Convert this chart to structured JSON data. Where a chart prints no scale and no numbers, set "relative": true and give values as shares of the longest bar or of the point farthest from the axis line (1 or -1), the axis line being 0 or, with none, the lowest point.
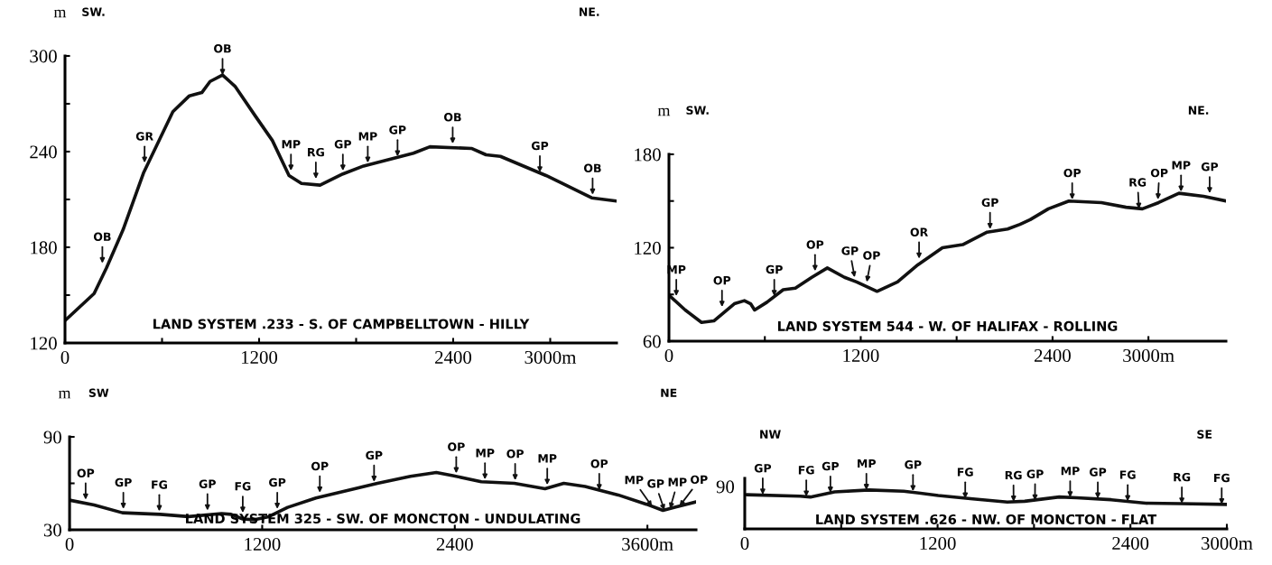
{
  "chart_data": [
    {
      "type": "line",
      "title": "LAND SYSTEM .233 - S. OF CAMPBELLTOWN - HILLY",
      "ylabel": "m",
      "x": [
        0,
        180,
        256,
        359,
        487,
        667,
        769,
        846,
        897,
        974,
        1051,
        1179,
        1282,
        1385,
        1462,
        1577,
        1718,
        1846,
        2154,
        2256,
        2513,
        2603,
        2692,
        2974,
        3077,
        3256,
        3410
      ],
      "series": [
        {
          "color": "#111111",
          "values": [
            134,
            151,
            167,
            191,
            227,
            265,
            275,
            277,
            284,
            288,
            281,
            262,
            247,
            225,
            220,
            219,
            226,
            231,
            239,
            243,
            242,
            238,
            237,
            225,
            220,
            211,
            209
          ]
        }
      ],
      "xlim": [
        0,
        3410
      ],
      "xticks": [
        0,
        {
          "value": 600,
          "label": null
        },
        1200,
        {
          "value": 1800,
          "label": null
        },
        2400,
        {
          "value": 3000,
          "label": "3000m"
        }
      ],
      "ylim": [
        120,
        300
      ],
      "yticks": [
        120,
        {
          "value": 150,
          "label": null
        },
        180,
        {
          "value": 210,
          "label": null
        },
        240,
        {
          "value": 270,
          "label": null
        },
        300
      ],
      "annotations": [
        "SW.",
        "NE.",
        {
          "text": "OB",
          "x": 231,
          "y": 170
        },
        {
          "text": "GR",
          "x": 492,
          "y": 233
        },
        {
          "text": "OB",
          "x": 974,
          "y": 288
        },
        {
          "text": "MP",
          "x": 1397,
          "y": 228
        },
        {
          "text": "RG",
          "x": 1551,
          "y": 223
        },
        {
          "text": "GP",
          "x": 1718,
          "y": 228
        },
        {
          "text": "MP",
          "x": 1872,
          "y": 233
        },
        {
          "text": "GP",
          "x": 2056,
          "y": 237
        },
        {
          "text": "OB",
          "x": 2397,
          "y": 245
        },
        {
          "text": "GP",
          "x": 2936,
          "y": 227
        },
        {
          "text": "OB",
          "x": 3262,
          "y": 213
        }
      ]
    },
    {
      "type": "line",
      "title": "LAND SYSTEM 544 - W. OF HALIFAX - ROLLING",
      "ylabel": "m",
      "x": [
        5,
        102,
        204,
        281,
        409,
        472,
        511,
        536,
        613,
        715,
        791,
        894,
        991,
        1098,
        1174,
        1302,
        1430,
        1557,
        1711,
        1838,
        1991,
        2119,
        2196,
        2260,
        2374,
        2502,
        2706,
        2860,
        2962,
        3064,
        3191,
        3345,
        3485
      ],
      "series": [
        {
          "color": "#111111",
          "values": [
            89,
            80,
            72,
            73,
            84,
            86,
            84,
            80,
            85,
            93,
            94,
            101,
            107,
            101,
            98,
            92,
            98,
            109,
            120,
            122,
            130,
            132,
            135,
            138,
            145,
            150,
            149,
            146,
            145,
            149,
            155,
            153,
            150
          ]
        }
      ],
      "xlim": [
        0,
        3485
      ],
      "xticks": [
        0,
        {
          "value": 600,
          "label": null
        },
        1200,
        {
          "value": 1800,
          "label": null
        },
        2400,
        {
          "value": 3000,
          "label": "3000m"
        }
      ],
      "ylim": [
        60,
        180
      ],
      "yticks": [
        60,
        {
          "value": 90,
          "label": null
        },
        120,
        {
          "value": 150,
          "label": null
        },
        180
      ],
      "annotations": [
        "SW.",
        "NE.",
        {
          "text": "MP",
          "x": 46,
          "y": 89
        },
        {
          "text": "OP",
          "x": 332,
          "y": 82
        },
        {
          "text": "GP",
          "x": 659,
          "y": 89
        },
        {
          "text": "OP",
          "x": 914,
          "y": 105
        },
        {
          "text": "GP",
          "x": 1162,
          "y": 101
        },
        {
          "text": "OP",
          "x": 1238,
          "y": 98
        },
        {
          "text": "OR",
          "x": 1565,
          "y": 113
        },
        {
          "text": "GP",
          "x": 2009,
          "y": 132
        },
        {
          "text": "OP",
          "x": 2523,
          "y": 151
        },
        {
          "text": "RG",
          "x": 2941,
          "y": 145
        },
        {
          "text": "OP",
          "x": 3059,
          "y": 151
        },
        {
          "text": "MP",
          "x": 3204,
          "y": 156
        },
        {
          "text": "GP",
          "x": 3383,
          "y": 155
        }
      ]
    },
    {
      "type": "line",
      "title": "LAND SYSTEM 325 - SW. OF MONCTON - UNDULATING",
      "ylabel": "m",
      "x": [
        6,
        153,
        329,
        565,
        741,
        947,
        1006,
        1079,
        1153,
        1241,
        1359,
        1535,
        1918,
        2124,
        2285,
        2388,
        2565,
        2771,
        2962,
        3079,
        3212,
        3418,
        3594,
        3697,
        3771,
        3903
      ],
      "series": [
        {
          "color": "#111111",
          "values": [
            49,
            46,
            41,
            40,
            38.5,
            40.5,
            40,
            37,
            36.5,
            38.5,
            44.5,
            50.5,
            60,
            64.5,
            67,
            65,
            61,
            60,
            56.5,
            60,
            58,
            52.5,
            46.5,
            42.5,
            44.5,
            48
          ]
        }
      ],
      "xlim": [
        0,
        3903
      ],
      "xticks": [
        0,
        1200,
        2400,
        {
          "value": 3600,
          "label": "3600m"
        }
      ],
      "ylim": [
        30,
        90
      ],
      "yticks": [
        30,
        {
          "value": 60,
          "label": null
        },
        90
      ],
      "annotations": [
        "SW",
        "NE",
        {
          "text": "OP",
          "x": 100,
          "y": 49.5
        },
        {
          "text": "GP",
          "x": 335,
          "y": 43.5
        },
        {
          "text": "FG",
          "x": 559,
          "y": 42
        },
        {
          "text": "GP",
          "x": 859,
          "y": 42.5
        },
        {
          "text": "FG",
          "x": 1079,
          "y": 41
        },
        {
          "text": "GP",
          "x": 1294,
          "y": 43.5
        },
        {
          "text": "OP",
          "x": 1559,
          "y": 54
        },
        {
          "text": "GP",
          "x": 1897,
          "y": 61
        },
        {
          "text": "OP",
          "x": 2409,
          "y": 66.5
        },
        {
          "text": "MP",
          "x": 2588,
          "y": 62.5
        },
        {
          "text": "OP",
          "x": 2776,
          "y": 62
        },
        {
          "text": "MP",
          "x": 2976,
          "y": 59
        },
        {
          "text": "OP",
          "x": 3300,
          "y": 55.6
        },
        {
          "text": "MP",
          "x": 3629,
          "y": 45.1
        },
        {
          "text": "GP",
          "x": 3706,
          "y": 42.7
        },
        {
          "text": "MP",
          "x": 3741,
          "y": 43.7
        },
        {
          "text": "OP",
          "x": 3800,
          "y": 45.3
        }
      ]
    },
    {
      "type": "line",
      "title": "LAND SYSTEM .626 - NW. OF MONCTON - FLAT",
      "relative": true,
      "x": [
        11,
        344,
        409,
        559,
        774,
        989,
        1204,
        1419,
        1634,
        1742,
        1957,
        2065,
        2280,
        2495,
        2710,
        3000
      ],
      "series": [
        {
          "color": "#111111",
          "values": [
            0.88,
            0.84,
            0.82,
            0.95,
            1.0,
            0.97,
            0.86,
            0.77,
            0.69,
            0.71,
            0.82,
            0.8,
            0.75,
            0.66,
            0.65,
            0.63
          ]
        }
      ],
      "xlim": [
        0,
        3000
      ],
      "xticks": [
        0,
        {
          "value": 600,
          "label": null
        },
        1200,
        {
          "value": 1800,
          "label": null
        },
        2400,
        {
          "value": 3000,
          "label": "3000m"
        }
      ],
      "annotations": [
        "NW",
        "SE",
        "90",
        {
          "text": "GP",
          "x": 112,
          "y": 0.88
        },
        {
          "text": "FG",
          "x": 383,
          "y": 0.83
        },
        {
          "text": "GP",
          "x": 533,
          "y": 0.93
        },
        {
          "text": "MP",
          "x": 757,
          "y": 1.0
        },
        {
          "text": "GP",
          "x": 1047,
          "y": 0.97
        },
        {
          "text": "FG",
          "x": 1372,
          "y": 0.78
        },
        {
          "text": "RG",
          "x": 1673,
          "y": 0.7
        },
        {
          "text": "GP",
          "x": 1806,
          "y": 0.73
        },
        {
          "text": "MP",
          "x": 2025,
          "y": 0.81
        },
        {
          "text": "GP",
          "x": 2197,
          "y": 0.78
        },
        {
          "text": "FG",
          "x": 2383,
          "y": 0.71
        },
        {
          "text": "RG",
          "x": 2720,
          "y": 0.65
        },
        {
          "text": "FG",
          "x": 2968,
          "y": 0.63
        }
      ]
    }
  ]
}
